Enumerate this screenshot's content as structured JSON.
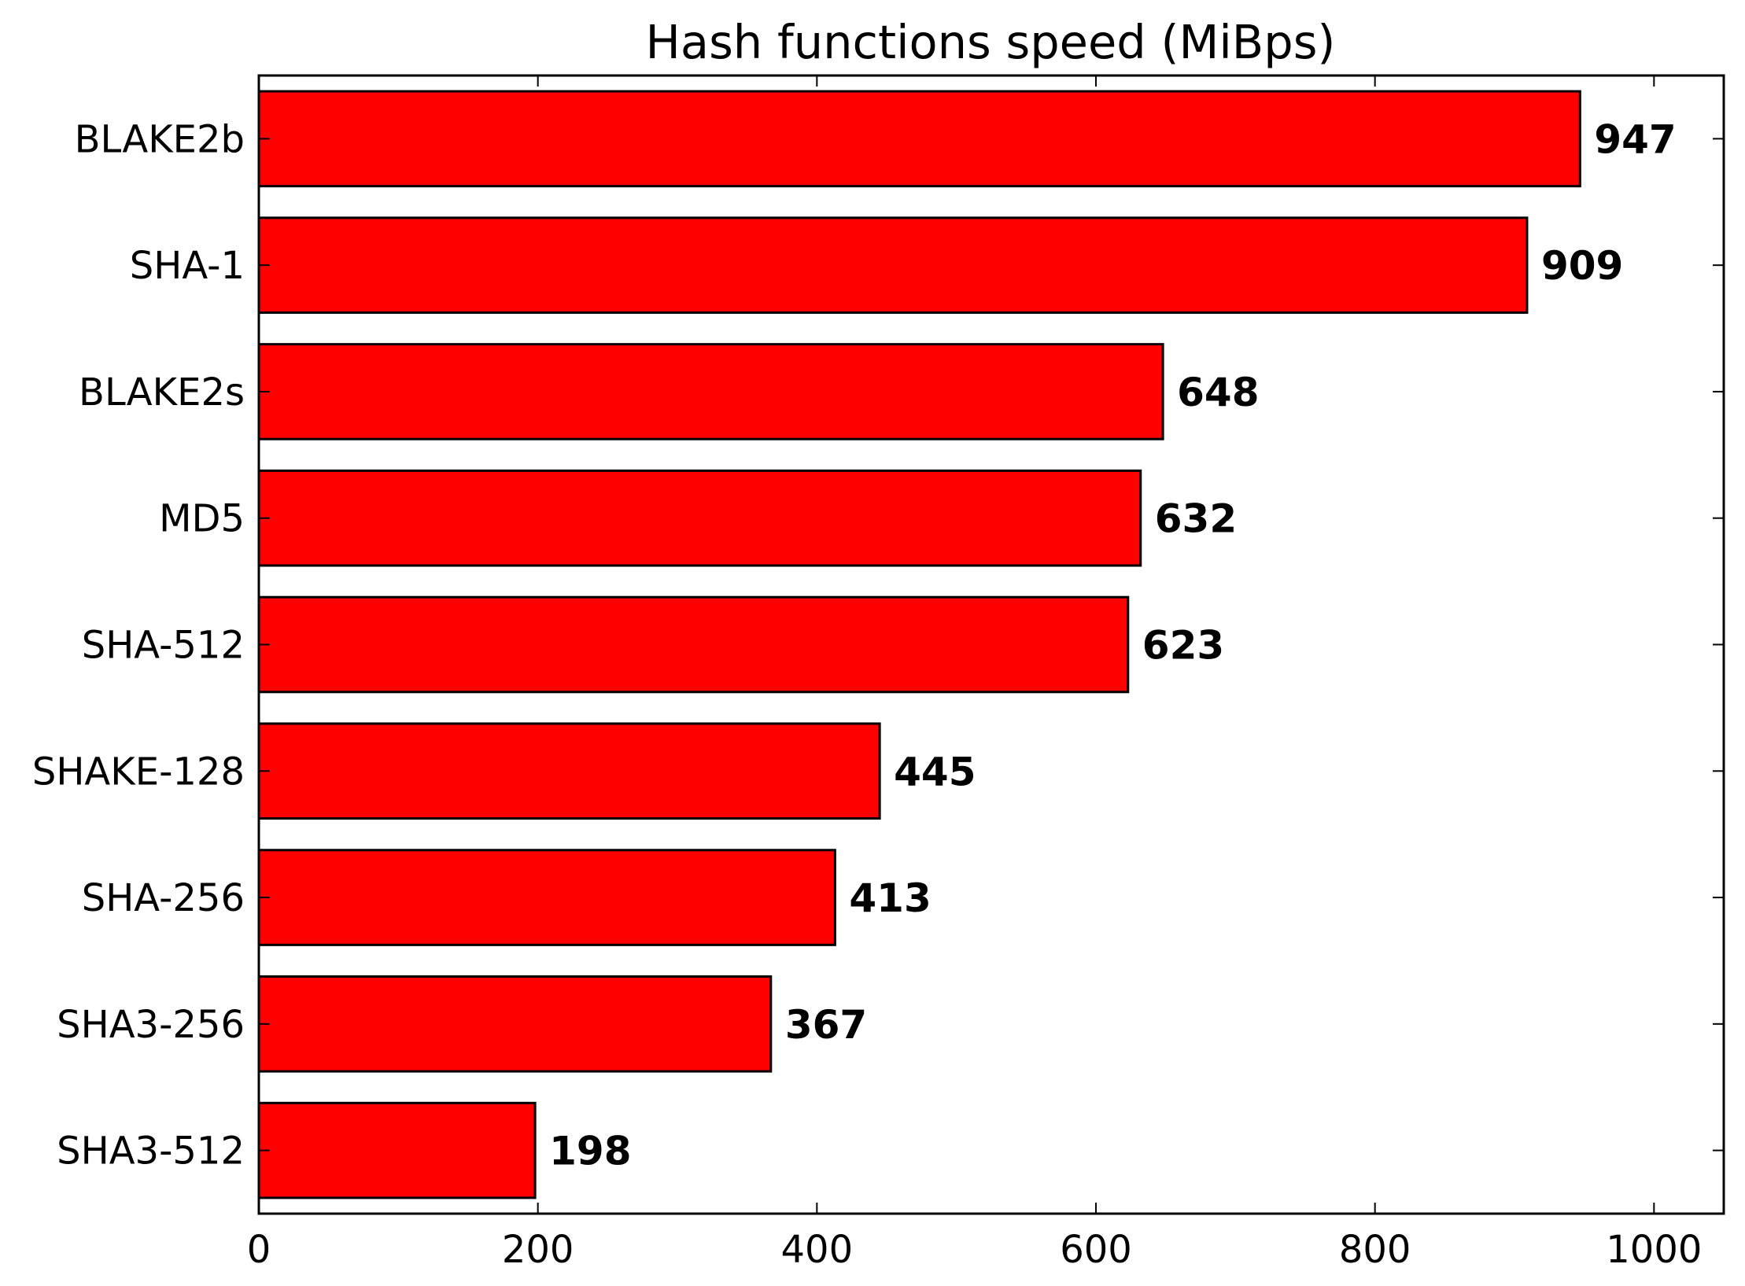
{
  "chart_data": {
    "type": "bar",
    "orientation": "horizontal",
    "title": "Hash functions speed (MiBps)",
    "xlabel": "",
    "ylabel": "",
    "categories": [
      "BLAKE2b",
      "SHA-1",
      "BLAKE2s",
      "MD5",
      "SHA-512",
      "SHAKE-128",
      "SHA-256",
      "SHA3-256",
      "SHA3-512"
    ],
    "values": [
      947,
      909,
      648,
      632,
      623,
      445,
      413,
      367,
      198
    ],
    "xlim": [
      0,
      1050
    ],
    "xticks": [
      0,
      200,
      400,
      600,
      800,
      1000
    ],
    "xtick_labels": [
      "0",
      "200",
      "400",
      "600",
      "800",
      "1000"
    ],
    "data_labels": true,
    "grid": false,
    "legend": "none",
    "colors": {
      "bar_fill": "#ff0000",
      "bar_edge": "#000000",
      "axis": "#000000",
      "background": "#ffffff"
    }
  }
}
